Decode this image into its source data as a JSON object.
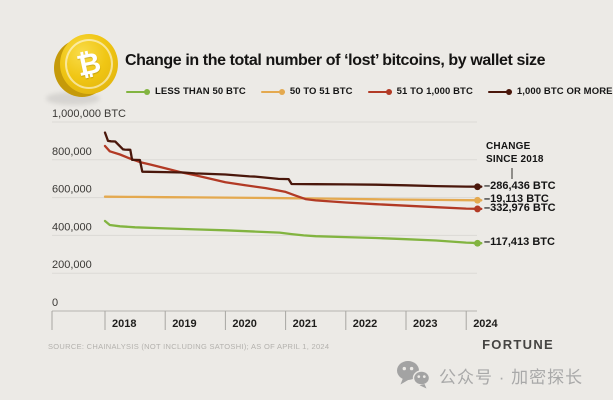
{
  "header": {
    "title": "Change in the total number of ‘lost’ bitcoins, by wallet size"
  },
  "logo": {
    "symbol": "₿"
  },
  "chart_data": {
    "type": "line",
    "title": "Change in the total number of ‘lost’ bitcoins, by wallet size",
    "xlabel": "",
    "ylabel": "BTC",
    "xlim": [
      2018,
      2024.6
    ],
    "ylim": [
      0,
      1000000
    ],
    "grid": true,
    "legend_position": "top",
    "x_ticks": [
      2018,
      2019,
      2020,
      2021,
      2022,
      2023,
      2024
    ],
    "y_ticks": [
      {
        "value": 1000000,
        "label": "1,000,000 BTC"
      },
      {
        "value": 800000,
        "label": "800,000"
      },
      {
        "value": 600000,
        "label": "600,000"
      },
      {
        "value": 400000,
        "label": "400,000"
      },
      {
        "value": 200000,
        "label": "200,000"
      },
      {
        "value": 0,
        "label": "0"
      }
    ],
    "series": [
      {
        "name": "LESS THAN 50 BTC",
        "color": "#82b440",
        "change_since_2018": -117413,
        "x": [
          2018.0,
          2018.08,
          2018.25,
          2018.5,
          2019.0,
          2019.5,
          2020.0,
          2020.5,
          2020.9,
          2021.1,
          2021.3,
          2021.5,
          2022.0,
          2022.5,
          2023.0,
          2023.5,
          2024.0,
          2024.25
        ],
        "y": [
          476000,
          455000,
          448000,
          443000,
          437000,
          432000,
          427000,
          420000,
          415000,
          407000,
          400000,
          396000,
          391000,
          386000,
          380000,
          373000,
          362000,
          358587
        ]
      },
      {
        "name": "50 TO 51 BTC",
        "color": "#e4a94f",
        "change_since_2018": -19113,
        "x": [
          2018.0,
          2018.5,
          2019.0,
          2019.5,
          2020.0,
          2020.5,
          2021.0,
          2021.5,
          2022.0,
          2022.5,
          2023.0,
          2023.5,
          2024.0,
          2024.25
        ],
        "y": [
          605000,
          603500,
          602000,
          601000,
          600000,
          598500,
          597000,
          595000,
          593000,
          591000,
          589500,
          588000,
          586500,
          585887
        ]
      },
      {
        "name": "51 TO 1,000 BTC",
        "color": "#b23a25",
        "change_since_2018": -332976,
        "x": [
          2018.0,
          2018.08,
          2018.25,
          2018.42,
          2018.58,
          2018.75,
          2019.0,
          2019.25,
          2019.5,
          2019.75,
          2020.0,
          2020.33,
          2020.67,
          2021.0,
          2021.17,
          2021.33,
          2021.5,
          2022.0,
          2022.5,
          2023.0,
          2023.5,
          2024.0,
          2024.25
        ],
        "y": [
          873000,
          845000,
          828000,
          806000,
          788000,
          775000,
          755000,
          735000,
          718000,
          700000,
          681000,
          665000,
          650000,
          630000,
          610000,
          592000,
          585000,
          574000,
          565000,
          557000,
          549000,
          542000,
          540024
        ]
      },
      {
        "name": "1,000 BTC OR MORE",
        "color": "#4a170b",
        "change_since_2018": -286436,
        "x": [
          2018.0,
          2018.05,
          2018.1,
          2018.17,
          2018.3,
          2018.33,
          2018.42,
          2018.45,
          2018.58,
          2018.62,
          2019.0,
          2019.3,
          2019.5,
          2020.0,
          2020.4,
          2020.5,
          2020.88,
          2021.05,
          2021.1,
          2021.5,
          2022.0,
          2022.5,
          2023.0,
          2023.5,
          2024.0,
          2024.25
        ],
        "y": [
          944000,
          900000,
          898000,
          897000,
          855000,
          854000,
          853000,
          800000,
          799000,
          737000,
          735000,
          733000,
          728000,
          722000,
          712000,
          711000,
          699000,
          698000,
          672000,
          671000,
          670000,
          668000,
          665000,
          661000,
          658000,
          657564
        ]
      }
    ],
    "annotations": {
      "header_line1": "CHANGE",
      "header_line2": "SINCE 2018",
      "items": [
        {
          "label": "–286,436 BTC",
          "series": "1,000 BTC OR MORE"
        },
        {
          "label": "–19,113 BTC",
          "series": "50 TO 51 BTC"
        },
        {
          "label": "–332,976 BTC",
          "series": "51 TO 1,000 BTC"
        },
        {
          "label": "–117,413 BTC",
          "series": "LESS THAN 50 BTC"
        }
      ]
    }
  },
  "footer": {
    "source": "SOURCE: CHAINALYSIS (NOT INCLUDING SATOSHI); AS OF APRIL 1, 2024",
    "brand": "FORTUNE",
    "watermark": "公众号 · 加密探长"
  },
  "colors": {
    "background": "#eceae6",
    "gridline": "#dbd9d5",
    "axis": "#b6b4b0",
    "tick": "#a8a6a2"
  }
}
